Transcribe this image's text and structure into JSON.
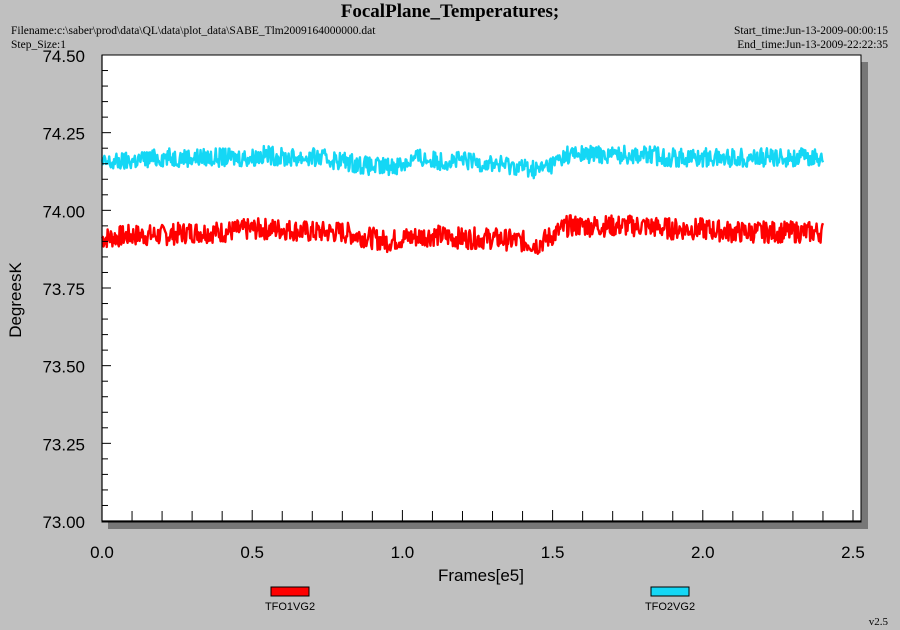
{
  "header": {
    "title": "FocalPlane_Temperatures;",
    "filename": "Filename:c:\\saber\\prod\\data\\QL\\data\\plot_data\\SABE_Tlm2009164000000.dat",
    "step_size": "Step_Size:1",
    "start_time": "Start_time:Jun-13-2009-00:00:15",
    "end_time": "End_time:Jun-13-2009-22:22:35"
  },
  "version": "v2.5",
  "chart_data": {
    "type": "line",
    "title": "FocalPlane_Temperatures;",
    "xlabel": "Frames[e5]",
    "ylabel": "DegreesK",
    "xlim": [
      0.0,
      2.5
    ],
    "ylim": [
      73.0,
      74.5
    ],
    "x_ticks": [
      "0.0",
      "0.5",
      "1.0",
      "1.5",
      "2.0",
      "2.5"
    ],
    "y_ticks": [
      "73.00",
      "73.25",
      "73.50",
      "73.75",
      "74.00",
      "74.25",
      "74.50"
    ],
    "grid": false,
    "legend_position": "bottom",
    "series": [
      {
        "name": "TFO1VG2",
        "color": "#ff0000",
        "x": [
          0.0,
          0.1,
          0.2,
          0.3,
          0.4,
          0.5,
          0.55,
          0.6,
          0.7,
          0.8,
          0.9,
          0.95,
          1.0,
          1.1,
          1.2,
          1.3,
          1.4,
          1.45,
          1.5,
          1.55,
          1.6,
          1.7,
          1.8,
          1.9,
          2.0,
          2.1,
          2.2,
          2.3,
          2.4
        ],
        "y": [
          73.91,
          73.92,
          73.92,
          73.93,
          73.93,
          73.94,
          73.94,
          73.94,
          73.93,
          73.93,
          73.91,
          73.9,
          73.91,
          73.92,
          73.91,
          73.91,
          73.9,
          73.89,
          73.92,
          73.95,
          73.95,
          73.95,
          73.95,
          73.94,
          73.94,
          73.93,
          73.93,
          73.93,
          73.93
        ],
        "noise": 0.035
      },
      {
        "name": "TFO2VG2",
        "color": "#14d7f5",
        "x": [
          0.0,
          0.1,
          0.2,
          0.3,
          0.4,
          0.5,
          0.55,
          0.6,
          0.7,
          0.8,
          0.9,
          0.95,
          1.0,
          1.05,
          1.1,
          1.2,
          1.3,
          1.4,
          1.45,
          1.5,
          1.55,
          1.6,
          1.7,
          1.8,
          1.9,
          2.0,
          2.1,
          2.2,
          2.3,
          2.4
        ],
        "y": [
          74.15,
          74.16,
          74.17,
          74.17,
          74.17,
          74.17,
          74.18,
          74.17,
          74.17,
          74.16,
          74.14,
          74.14,
          74.15,
          74.17,
          74.16,
          74.16,
          74.15,
          74.14,
          74.13,
          74.15,
          74.18,
          74.18,
          74.18,
          74.18,
          74.17,
          74.17,
          74.17,
          74.17,
          74.17,
          74.17
        ],
        "noise": 0.03
      }
    ]
  }
}
